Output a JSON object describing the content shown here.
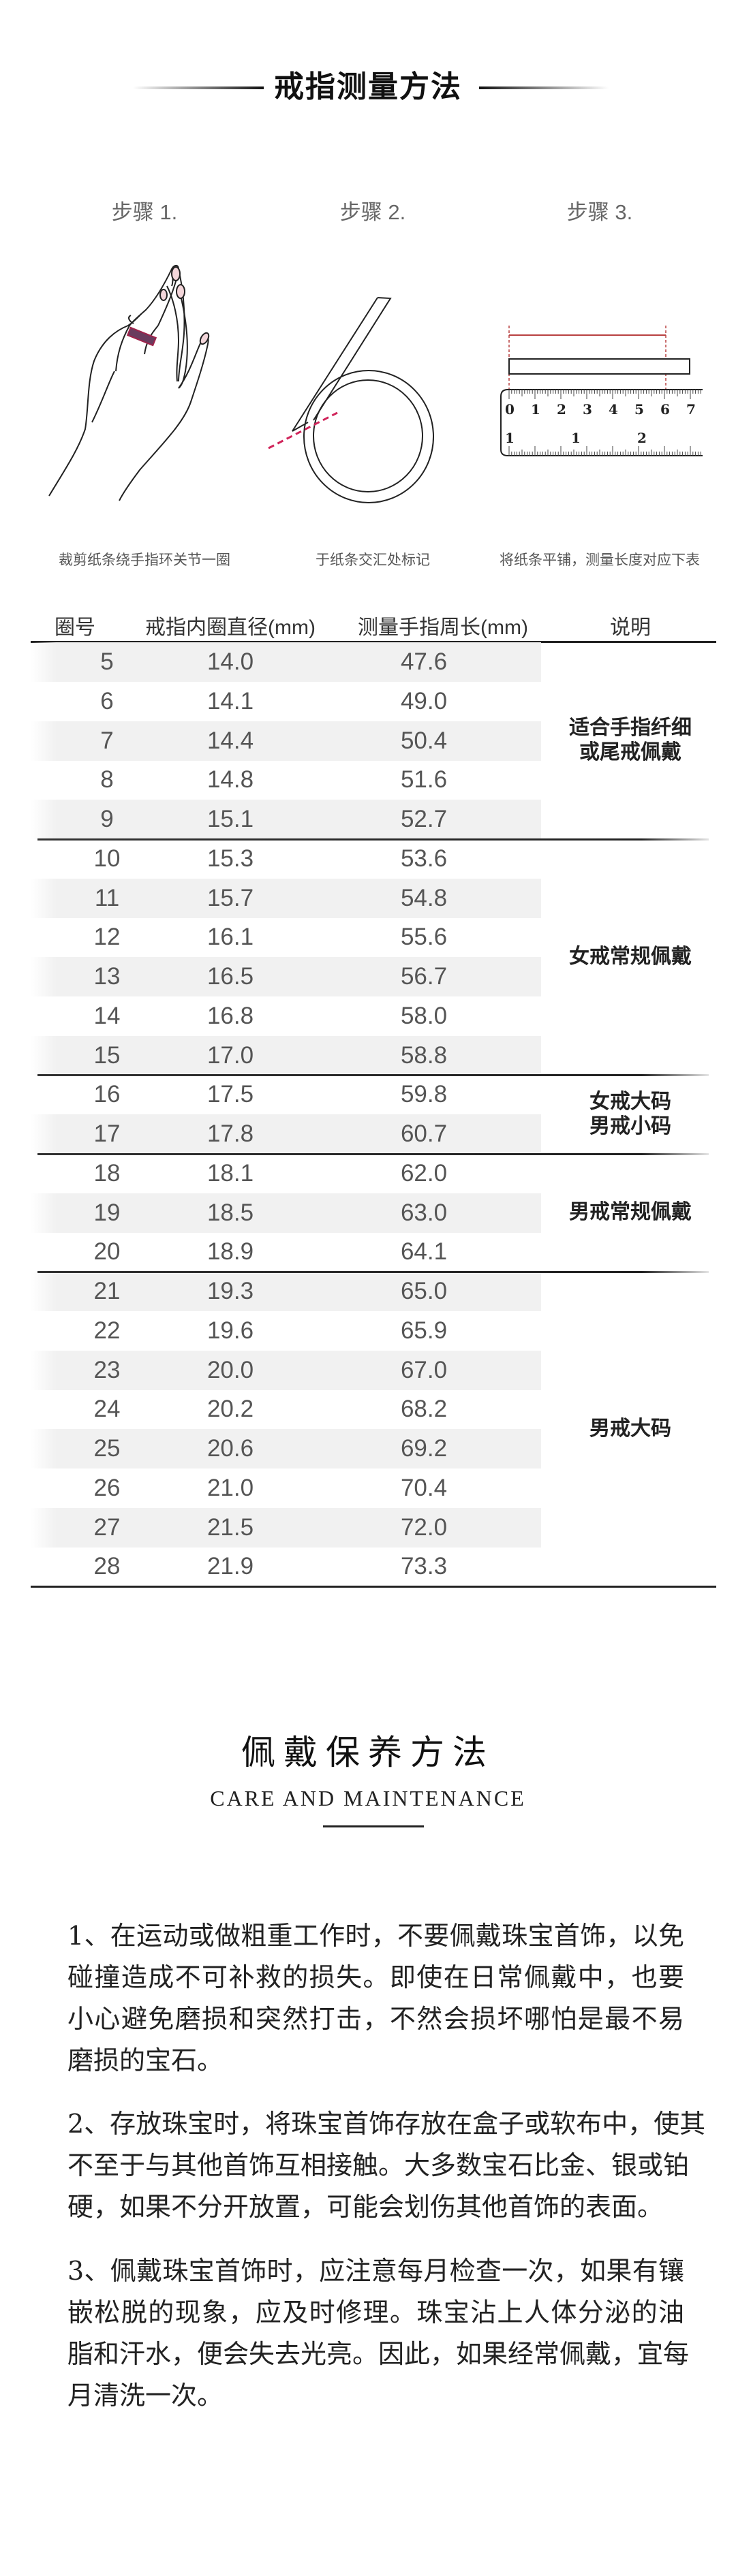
{
  "measure": {
    "title": "戒指测量方法",
    "steps": [
      {
        "label": "步骤 1.",
        "caption": "裁剪纸条绕手指环关节一圈"
      },
      {
        "label": "步骤 2.",
        "caption": "于纸条交汇处标记"
      },
      {
        "label": "步骤 3.",
        "caption": "将纸条平铺，测量长度对应下表"
      }
    ],
    "ruler_top_numbers": [
      "0",
      "1",
      "2",
      "3",
      "4",
      "5",
      "6",
      "7"
    ],
    "ruler_bottom_numbers": [
      "1",
      "1",
      "2"
    ],
    "accent_color": "#d0245a"
  },
  "table": {
    "headers": [
      "圈号",
      "戒指内圈直径(mm)",
      "测量手指周长(mm)",
      "说明"
    ],
    "rows": [
      [
        "5",
        "14.0",
        "47.6"
      ],
      [
        "6",
        "14.1",
        "49.0"
      ],
      [
        "7",
        "14.4",
        "50.4"
      ],
      [
        "8",
        "14.8",
        "51.6"
      ],
      [
        "9",
        "15.1",
        "52.7"
      ],
      [
        "10",
        "15.3",
        "53.6"
      ],
      [
        "11",
        "15.7",
        "54.8"
      ],
      [
        "12",
        "16.1",
        "55.6"
      ],
      [
        "13",
        "16.5",
        "56.7"
      ],
      [
        "14",
        "16.8",
        "58.0"
      ],
      [
        "15",
        "17.0",
        "58.8"
      ],
      [
        "16",
        "17.5",
        "59.8"
      ],
      [
        "17",
        "17.8",
        "60.7"
      ],
      [
        "18",
        "18.1",
        "62.0"
      ],
      [
        "19",
        "18.5",
        "63.0"
      ],
      [
        "20",
        "18.9",
        "64.1"
      ],
      [
        "21",
        "19.3",
        "65.0"
      ],
      [
        "22",
        "19.6",
        "65.9"
      ],
      [
        "23",
        "20.0",
        "67.0"
      ],
      [
        "24",
        "20.2",
        "68.2"
      ],
      [
        "25",
        "20.6",
        "69.2"
      ],
      [
        "26",
        "21.0",
        "70.4"
      ],
      [
        "27",
        "21.5",
        "72.0"
      ],
      [
        "28",
        "21.9",
        "73.3"
      ]
    ],
    "groups": [
      {
        "start": 0,
        "count": 5,
        "lines": [
          "适合手指纤细",
          "或尾戒佩戴"
        ]
      },
      {
        "start": 5,
        "count": 6,
        "lines": [
          "女戒常规佩戴"
        ]
      },
      {
        "start": 11,
        "count": 2,
        "lines": [
          "女戒大码",
          "男戒小码"
        ]
      },
      {
        "start": 13,
        "count": 3,
        "lines": [
          "男戒常规佩戴"
        ]
      },
      {
        "start": 16,
        "count": 8,
        "lines": [
          "男戒大码"
        ]
      }
    ]
  },
  "care": {
    "title": "佩戴保养方法",
    "subtitle": "CARE AND MAINTENANCE",
    "paragraphs": [
      [
        "1、在运动或做粗重工作时，不要佩戴珠宝首饰，以免",
        "碰撞造成不可补救的损失。即使在日常佩戴中，也要",
        "小心避免磨损和突然打击，不然会损坏哪怕是最不易",
        "磨损的宝石。"
      ],
      [
        "2、存放珠宝时，将珠宝首饰存放在盒子或软布中，使其",
        "不至于与其他首饰互相接触。大多数宝石比金、银或铂",
        "硬，如果不分开放置，可能会划伤其他首饰的表面。"
      ],
      [
        "3、佩戴珠宝首饰时，应注意每月检查一次，如果有镶",
        "嵌松脱的现象，应及时修理。珠宝沾上人体分泌的油",
        "脂和汗水，便会失去光亮。因此，如果经常佩戴，宜每",
        "月清洗一次。"
      ]
    ]
  }
}
